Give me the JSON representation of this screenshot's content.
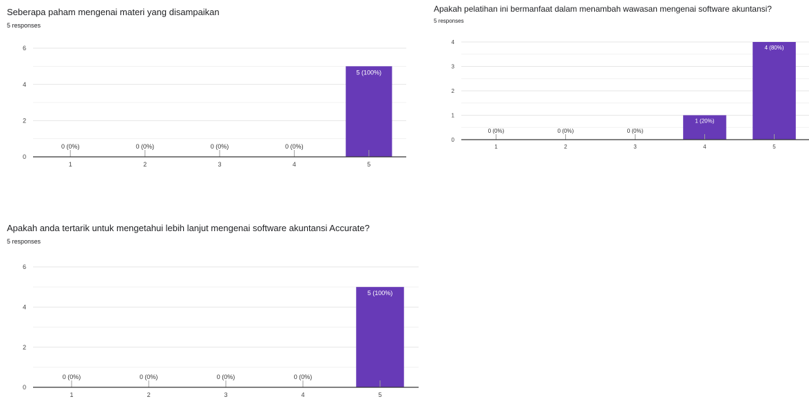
{
  "chart_data": [
    {
      "type": "bar",
      "title": "Seberapa paham mengenai materi yang disampaikan",
      "subtitle": "5 responses",
      "categories": [
        "1",
        "2",
        "3",
        "4",
        "5"
      ],
      "values": [
        0,
        0,
        0,
        0,
        5
      ],
      "data_labels": [
        "0 (0%)",
        "0 (0%)",
        "0 (0%)",
        "0 (0%)",
        "5 (100%)"
      ],
      "ylim": [
        0,
        6
      ],
      "yticks": [
        0,
        2,
        4,
        6
      ],
      "grid": true,
      "bar_color": "#673ab7"
    },
    {
      "type": "bar",
      "title": "Apakah pelatihan ini bermanfaat dalam menambah wawasan mengenai software akuntansi?",
      "subtitle": "5 responses",
      "categories": [
        "1",
        "2",
        "3",
        "4",
        "5"
      ],
      "values": [
        0,
        0,
        0,
        1,
        4
      ],
      "data_labels": [
        "0 (0%)",
        "0 (0%)",
        "0 (0%)",
        "1 (20%)",
        "4 (80%)"
      ],
      "ylim": [
        0,
        4
      ],
      "yticks": [
        0,
        1,
        2,
        3,
        4
      ],
      "grid": true,
      "bar_color": "#673ab7"
    },
    {
      "type": "bar",
      "title": "Apakah anda tertarik untuk mengetahui lebih lanjut mengenai software akuntansi Accurate?",
      "subtitle": "5 responses",
      "categories": [
        "1",
        "2",
        "3",
        "4",
        "5"
      ],
      "values": [
        0,
        0,
        0,
        0,
        5
      ],
      "data_labels": [
        "0 (0%)",
        "0 (0%)",
        "0 (0%)",
        "0 (0%)",
        "5 (100%)"
      ],
      "ylim": [
        0,
        6
      ],
      "yticks": [
        0,
        2,
        4,
        6
      ],
      "grid": true,
      "bar_color": "#673ab7"
    }
  ]
}
